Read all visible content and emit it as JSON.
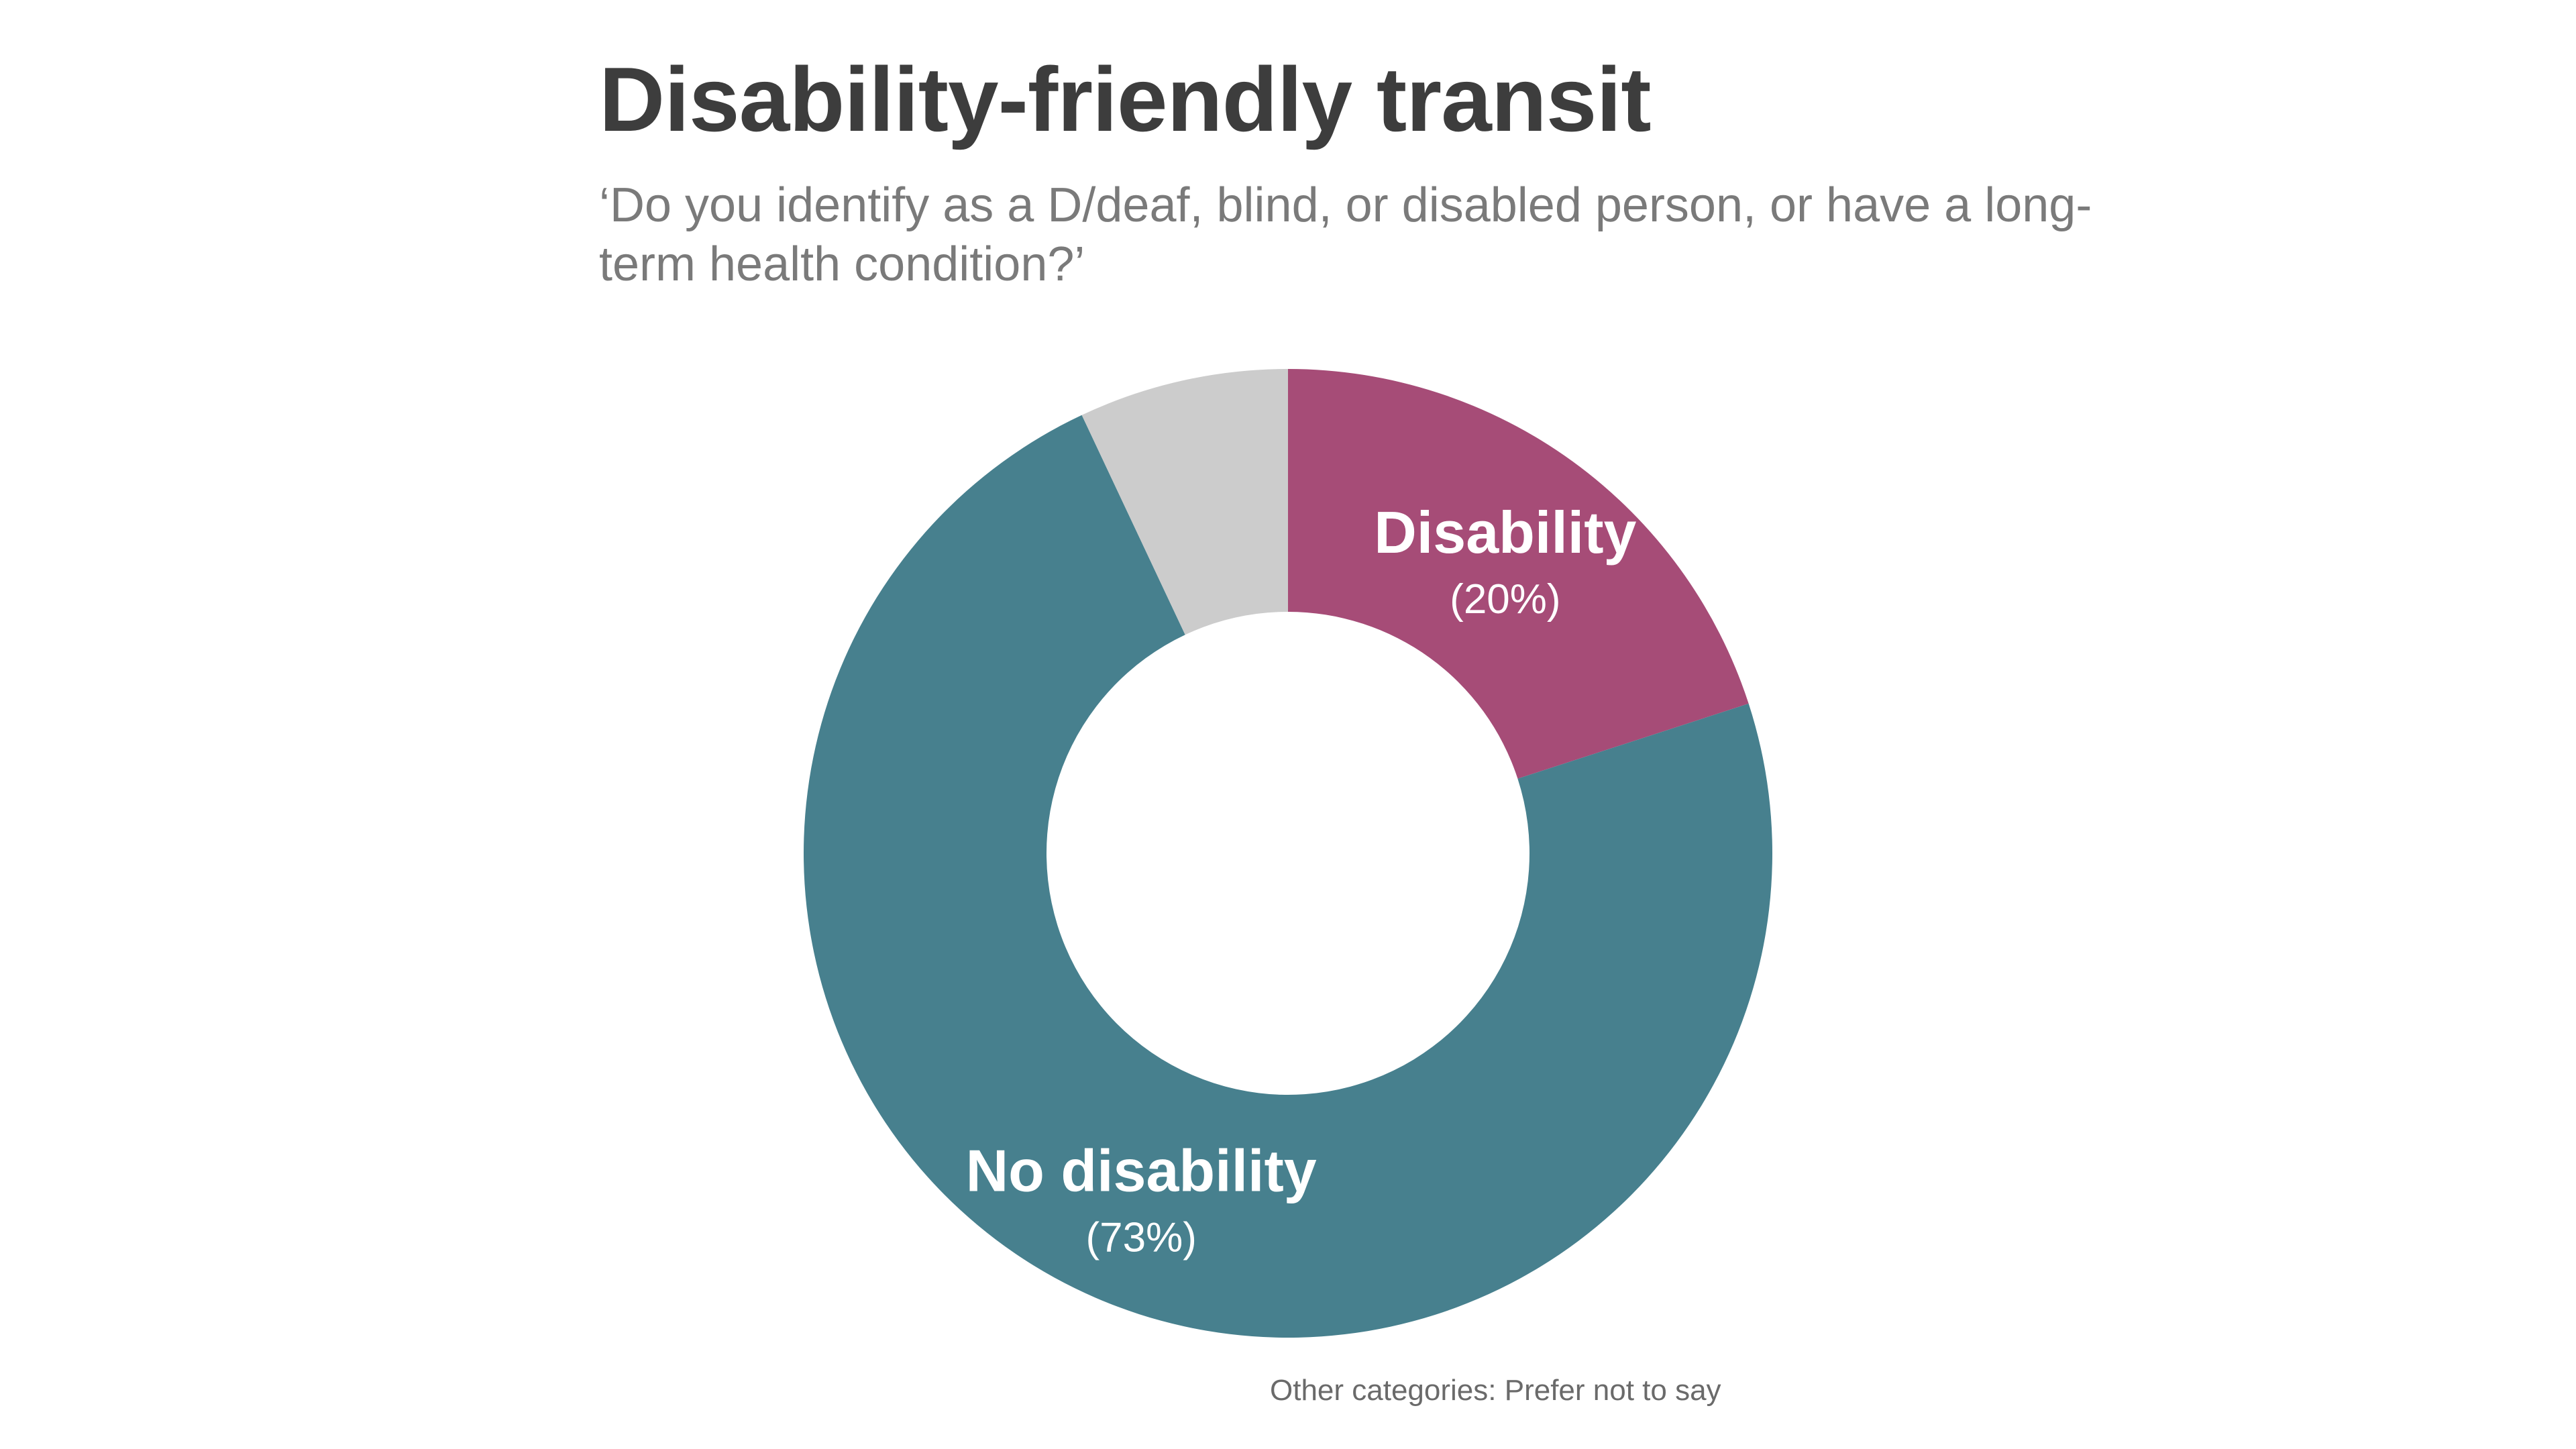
{
  "chart_data": {
    "type": "pie",
    "title": "Disability-friendly transit",
    "subtitle": "‘Do you identify as a D/deaf, blind, or disabled person, or have a long-term health condition?’",
    "slices": [
      {
        "name": "Disability",
        "value": 20,
        "value_label": "(20%)",
        "color": "#a64c77",
        "labeled": true
      },
      {
        "name": "No disability",
        "value": 73,
        "value_label": "(73%)",
        "color": "#47808e",
        "labeled": true
      },
      {
        "name": "Prefer not to say",
        "value": 7,
        "value_label": "",
        "color": "#cccccc",
        "labeled": false
      }
    ],
    "footnote": "Other categories: Prefer not to say"
  }
}
